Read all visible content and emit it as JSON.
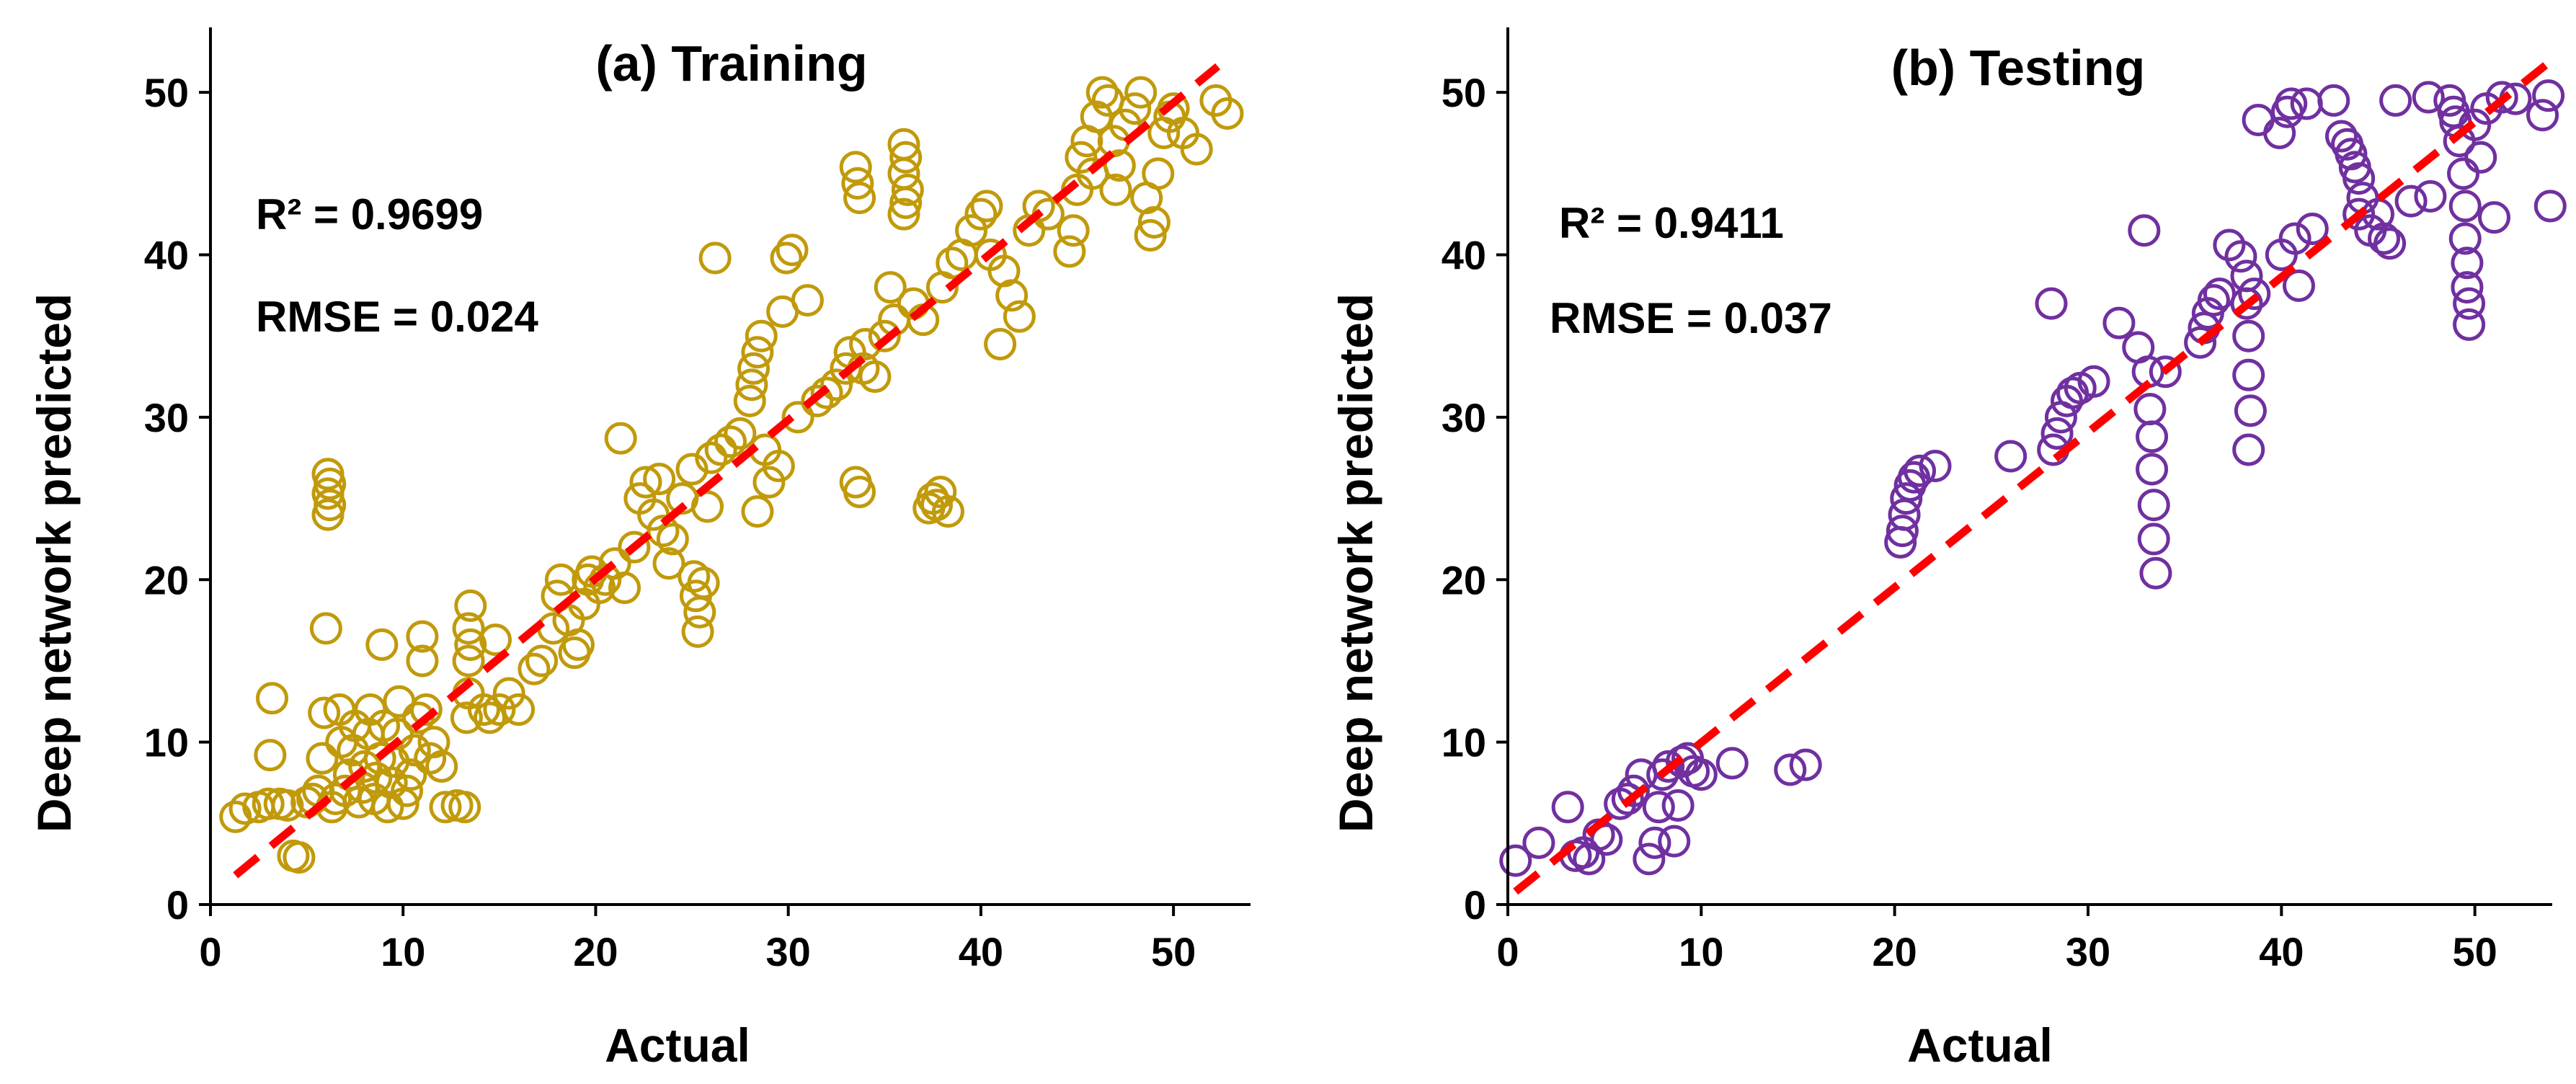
{
  "chart_data": [
    {
      "type": "scatter",
      "title": "(a) Training",
      "xlabel": "Actual",
      "ylabel": "Deep network predicted",
      "xlim": [
        0,
        54
      ],
      "ylim": [
        0,
        54
      ],
      "xticks": [
        0,
        10,
        20,
        30,
        40,
        50
      ],
      "yticks": [
        0,
        10,
        20,
        30,
        40,
        50
      ],
      "grid": false,
      "legend": "none",
      "marker_color": "#C19A0B",
      "fit_line_color": "#FF0000",
      "annotations": [
        "R² = 0.9699",
        "RMSE = 0.024"
      ],
      "fit_line": {
        "x": [
          1.3,
          52.3
        ],
        "y": [
          1.8,
          51.6
        ]
      },
      "points": [
        [
          1.3,
          5.4
        ],
        [
          1.8,
          5.9
        ],
        [
          2.5,
          6.0
        ],
        [
          3.0,
          6.2
        ],
        [
          3.2,
          12.7
        ],
        [
          3.1,
          9.2
        ],
        [
          3.6,
          6.2
        ],
        [
          4.0,
          6.1
        ],
        [
          4.3,
          3.0
        ],
        [
          4.6,
          2.9
        ],
        [
          5.0,
          6.3
        ],
        [
          5.3,
          6.5
        ],
        [
          5.6,
          7.0
        ],
        [
          5.8,
          9.0
        ],
        [
          5.9,
          11.8
        ],
        [
          6.0,
          17.0
        ],
        [
          6.1,
          24.0
        ],
        [
          6.2,
          24.6
        ],
        [
          6.1,
          25.3
        ],
        [
          6.2,
          25.9
        ],
        [
          6.1,
          26.5
        ],
        [
          6.3,
          6.0
        ],
        [
          6.5,
          6.5
        ],
        [
          6.7,
          12.0
        ],
        [
          6.8,
          10.0
        ],
        [
          7.0,
          7.0
        ],
        [
          7.2,
          8.0
        ],
        [
          7.4,
          9.5
        ],
        [
          7.5,
          11.0
        ],
        [
          7.7,
          6.3
        ],
        [
          7.9,
          7.2
        ],
        [
          8.0,
          8.5
        ],
        [
          8.2,
          10.5
        ],
        [
          8.3,
          12.0
        ],
        [
          8.5,
          6.5
        ],
        [
          8.6,
          7.8
        ],
        [
          8.8,
          9.0
        ],
        [
          8.9,
          16.0
        ],
        [
          9.0,
          11.0
        ],
        [
          9.2,
          6.0
        ],
        [
          9.4,
          7.5
        ],
        [
          9.5,
          8.8
        ],
        [
          9.7,
          10.5
        ],
        [
          9.8,
          12.5
        ],
        [
          10.0,
          6.2
        ],
        [
          10.2,
          7.0
        ],
        [
          10.4,
          8.0
        ],
        [
          10.6,
          9.5
        ],
        [
          10.8,
          11.5
        ],
        [
          11.0,
          15.0
        ],
        [
          11.0,
          16.5
        ],
        [
          11.2,
          12.0
        ],
        [
          11.4,
          9.0
        ],
        [
          11.6,
          10.0
        ],
        [
          12.0,
          8.5
        ],
        [
          12.2,
          6.0
        ],
        [
          12.8,
          6.1
        ],
        [
          13.2,
          6.0
        ],
        [
          13.3,
          11.5
        ],
        [
          13.4,
          13.0
        ],
        [
          13.4,
          15.0
        ],
        [
          13.5,
          16.0
        ],
        [
          13.4,
          17.0
        ],
        [
          13.5,
          18.4
        ],
        [
          14.2,
          12.0
        ],
        [
          14.5,
          11.5
        ],
        [
          14.8,
          16.3
        ],
        [
          15.0,
          12.0
        ],
        [
          15.5,
          13.0
        ],
        [
          16.0,
          12.0
        ],
        [
          16.8,
          14.5
        ],
        [
          17.2,
          15.0
        ],
        [
          17.8,
          17.0
        ],
        [
          18.0,
          19.0
        ],
        [
          18.2,
          20.0
        ],
        [
          18.6,
          17.5
        ],
        [
          18.9,
          15.5
        ],
        [
          19.1,
          16.0
        ],
        [
          19.4,
          18.5
        ],
        [
          19.6,
          20.0
        ],
        [
          19.8,
          20.5
        ],
        [
          20.2,
          19.5
        ],
        [
          20.5,
          20.0
        ],
        [
          21.0,
          21.0
        ],
        [
          21.3,
          28.7
        ],
        [
          21.5,
          19.5
        ],
        [
          22.0,
          22.0
        ],
        [
          22.3,
          25.0
        ],
        [
          22.6,
          26.0
        ],
        [
          23.0,
          24.0
        ],
        [
          23.3,
          26.2
        ],
        [
          23.5,
          23.0
        ],
        [
          23.8,
          21.0
        ],
        [
          24.0,
          22.5
        ],
        [
          24.5,
          25.0
        ],
        [
          25.0,
          26.8
        ],
        [
          25.1,
          20.2
        ],
        [
          25.2,
          19.0
        ],
        [
          25.4,
          18.0
        ],
        [
          25.3,
          16.8
        ],
        [
          25.6,
          19.8
        ],
        [
          25.8,
          24.5
        ],
        [
          26.0,
          27.5
        ],
        [
          26.2,
          39.8
        ],
        [
          26.5,
          28.0
        ],
        [
          27.0,
          28.5
        ],
        [
          27.5,
          29.0
        ],
        [
          28.0,
          31.0
        ],
        [
          28.1,
          32.0
        ],
        [
          28.2,
          33.0
        ],
        [
          28.4,
          34.0
        ],
        [
          28.6,
          35.0
        ],
        [
          28.8,
          28.0
        ],
        [
          28.4,
          24.2
        ],
        [
          29.0,
          26.0
        ],
        [
          29.5,
          27.0
        ],
        [
          29.7,
          36.5
        ],
        [
          29.9,
          39.8
        ],
        [
          30.2,
          40.3
        ],
        [
          30.5,
          30.0
        ],
        [
          31.0,
          37.2
        ],
        [
          31.5,
          31.0
        ],
        [
          32.0,
          31.5
        ],
        [
          32.5,
          32.0
        ],
        [
          33.0,
          33.0
        ],
        [
          33.2,
          34.0
        ],
        [
          33.5,
          45.4
        ],
        [
          33.6,
          44.4
        ],
        [
          33.7,
          43.5
        ],
        [
          33.5,
          26.0
        ],
        [
          33.7,
          25.4
        ],
        [
          33.9,
          33.0
        ],
        [
          34.0,
          34.5
        ],
        [
          34.5,
          32.5
        ],
        [
          35.0,
          35.0
        ],
        [
          35.3,
          38.0
        ],
        [
          35.5,
          36.0
        ],
        [
          36.0,
          46.8
        ],
        [
          36.1,
          46.0
        ],
        [
          36.0,
          45.0
        ],
        [
          36.2,
          44.0
        ],
        [
          36.1,
          43.2
        ],
        [
          36.0,
          42.5
        ],
        [
          36.5,
          37.0
        ],
        [
          37.0,
          36.0
        ],
        [
          37.3,
          24.4
        ],
        [
          37.5,
          25.0
        ],
        [
          37.7,
          24.6
        ],
        [
          37.9,
          25.4
        ],
        [
          38.3,
          24.2
        ],
        [
          38.0,
          38.0
        ],
        [
          38.5,
          39.5
        ],
        [
          39.0,
          40.0
        ],
        [
          39.5,
          41.5
        ],
        [
          40.0,
          42.5
        ],
        [
          40.3,
          43.0
        ],
        [
          40.5,
          40.0
        ],
        [
          41.0,
          34.5
        ],
        [
          41.2,
          39.0
        ],
        [
          41.6,
          37.5
        ],
        [
          42.0,
          36.2
        ],
        [
          42.5,
          41.5
        ],
        [
          43.0,
          43.0
        ],
        [
          43.5,
          42.5
        ],
        [
          44.6,
          40.2
        ],
        [
          44.8,
          41.5
        ],
        [
          45.0,
          44.0
        ],
        [
          45.2,
          46.0
        ],
        [
          45.5,
          47.0
        ],
        [
          45.8,
          45.0
        ],
        [
          46.0,
          48.5
        ],
        [
          46.3,
          50.0
        ],
        [
          46.6,
          49.5
        ],
        [
          46.9,
          47.0
        ],
        [
          47.0,
          44.0
        ],
        [
          47.2,
          45.5
        ],
        [
          47.5,
          48.0
        ],
        [
          48.0,
          49.0
        ],
        [
          48.3,
          50.0
        ],
        [
          48.6,
          43.5
        ],
        [
          48.8,
          41.2
        ],
        [
          49.0,
          42.0
        ],
        [
          49.2,
          45.0
        ],
        [
          49.5,
          47.5
        ],
        [
          49.8,
          48.5
        ],
        [
          50.0,
          49.0
        ],
        [
          50.5,
          47.5
        ],
        [
          51.2,
          46.5
        ],
        [
          52.2,
          49.5
        ],
        [
          52.8,
          48.7
        ]
      ]
    },
    {
      "type": "scatter",
      "title": "(b) Testing",
      "xlabel": "Actual",
      "ylabel": "Deep network predicted",
      "xlim": [
        0,
        54
      ],
      "ylim": [
        0,
        54
      ],
      "xticks": [
        0,
        10,
        20,
        30,
        40,
        50
      ],
      "yticks": [
        0,
        10,
        20,
        30,
        40,
        50
      ],
      "grid": false,
      "legend": "none",
      "marker_color": "#7030A0",
      "fit_line_color": "#FF0000",
      "annotations": [
        "R² = 0.9411",
        "RMSE = 0.037"
      ],
      "fit_line": {
        "x": [
          0.4,
          54.0
        ],
        "y": [
          0.8,
          52.0
        ]
      },
      "points": [
        [
          0.4,
          2.7
        ],
        [
          1.6,
          3.8
        ],
        [
          3.1,
          6.0
        ],
        [
          3.5,
          3.0
        ],
        [
          3.9,
          3.2
        ],
        [
          4.2,
          2.8
        ],
        [
          4.7,
          4.3
        ],
        [
          5.1,
          4.0
        ],
        [
          5.8,
          6.2
        ],
        [
          6.2,
          6.5
        ],
        [
          6.5,
          7.0
        ],
        [
          6.9,
          8.0
        ],
        [
          7.3,
          2.8
        ],
        [
          7.6,
          3.8
        ],
        [
          7.8,
          6.0
        ],
        [
          8.0,
          8.0
        ],
        [
          8.3,
          8.5
        ],
        [
          8.6,
          3.9
        ],
        [
          8.8,
          6.1
        ],
        [
          9.0,
          8.8
        ],
        [
          9.3,
          9.0
        ],
        [
          9.6,
          8.2
        ],
        [
          10.0,
          8.0
        ],
        [
          11.6,
          8.7
        ],
        [
          14.6,
          8.3
        ],
        [
          15.4,
          8.6
        ],
        [
          20.3,
          22.3
        ],
        [
          20.4,
          23.0
        ],
        [
          20.5,
          24.0
        ],
        [
          20.6,
          25.0
        ],
        [
          20.8,
          25.8
        ],
        [
          21.0,
          26.3
        ],
        [
          21.3,
          26.7
        ],
        [
          22.1,
          27.0
        ],
        [
          26.0,
          27.6
        ],
        [
          28.1,
          37.0
        ],
        [
          28.2,
          28.0
        ],
        [
          28.4,
          29.0
        ],
        [
          28.6,
          30.0
        ],
        [
          28.9,
          31.0
        ],
        [
          29.2,
          31.5
        ],
        [
          29.6,
          31.8
        ],
        [
          30.3,
          32.2
        ],
        [
          31.6,
          35.8
        ],
        [
          32.6,
          34.3
        ],
        [
          32.9,
          41.5
        ],
        [
          33.1,
          32.8
        ],
        [
          33.2,
          30.5
        ],
        [
          33.3,
          28.8
        ],
        [
          33.3,
          26.8
        ],
        [
          33.4,
          24.6
        ],
        [
          33.4,
          22.5
        ],
        [
          33.5,
          20.4
        ],
        [
          34.0,
          32.8
        ],
        [
          35.8,
          34.6
        ],
        [
          36.0,
          35.5
        ],
        [
          36.2,
          36.4
        ],
        [
          36.5,
          37.2
        ],
        [
          36.8,
          37.6
        ],
        [
          37.3,
          40.6
        ],
        [
          37.9,
          39.9
        ],
        [
          38.2,
          38.7
        ],
        [
          38.2,
          37.0
        ],
        [
          38.3,
          35.0
        ],
        [
          38.3,
          32.6
        ],
        [
          38.4,
          30.4
        ],
        [
          38.3,
          28.0
        ],
        [
          38.6,
          37.6
        ],
        [
          38.8,
          48.3
        ],
        [
          39.9,
          47.5
        ],
        [
          40.0,
          40.0
        ],
        [
          40.3,
          48.8
        ],
        [
          40.5,
          49.3
        ],
        [
          40.7,
          41.0
        ],
        [
          40.9,
          38.1
        ],
        [
          41.3,
          49.3
        ],
        [
          41.6,
          41.6
        ],
        [
          42.7,
          49.5
        ],
        [
          43.1,
          47.3
        ],
        [
          43.4,
          46.8
        ],
        [
          43.6,
          46.2
        ],
        [
          43.8,
          45.4
        ],
        [
          44.0,
          44.7
        ],
        [
          44.2,
          43.5
        ],
        [
          44.0,
          42.5
        ],
        [
          44.6,
          41.5
        ],
        [
          45.0,
          42.5
        ],
        [
          45.3,
          41.0
        ],
        [
          45.6,
          40.7
        ],
        [
          45.9,
          49.5
        ],
        [
          46.7,
          43.3
        ],
        [
          47.6,
          49.7
        ],
        [
          47.7,
          43.6
        ],
        [
          48.7,
          49.5
        ],
        [
          48.9,
          48.8
        ],
        [
          49.0,
          48.2
        ],
        [
          49.2,
          47.0
        ],
        [
          49.4,
          45.0
        ],
        [
          49.5,
          43.0
        ],
        [
          49.5,
          41.0
        ],
        [
          49.6,
          39.5
        ],
        [
          49.6,
          38.0
        ],
        [
          49.7,
          37.0
        ],
        [
          49.7,
          35.7
        ],
        [
          50.0,
          48.0
        ],
        [
          50.3,
          46.0
        ],
        [
          50.6,
          49.0
        ],
        [
          51.0,
          42.3
        ],
        [
          51.4,
          49.7
        ],
        [
          52.1,
          49.6
        ],
        [
          53.5,
          48.6
        ],
        [
          53.8,
          49.8
        ],
        [
          53.9,
          43.0
        ]
      ]
    }
  ]
}
